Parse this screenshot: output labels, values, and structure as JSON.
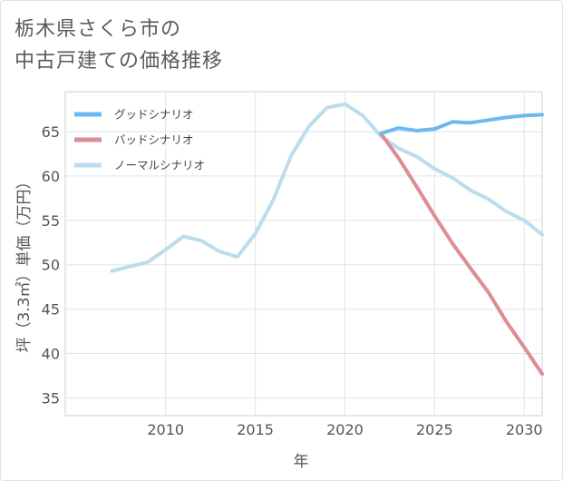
{
  "title_line1": "栃木県さくら市の",
  "title_line2": "中古戸建ての価格推移",
  "chart_data": {
    "type": "line",
    "xlabel": "年",
    "ylabel": "坪（3.3㎡）単価（万円）",
    "xlim": [
      2004.4,
      2031.0
    ],
    "ylim": [
      33.0,
      69.5
    ],
    "xticks": [
      2010,
      2015,
      2020,
      2025,
      2030
    ],
    "yticks": [
      35,
      40,
      45,
      50,
      55,
      60,
      65
    ],
    "grid": true,
    "legend_position": "top-left",
    "series": [
      {
        "name": "グッドシナリオ",
        "color": "#6bb9ee",
        "x": [
          2022,
          2023,
          2024,
          2025,
          2026,
          2027,
          2028,
          2029,
          2030,
          2031
        ],
        "values": [
          64.8,
          65.4,
          65.1,
          65.3,
          66.1,
          66.0,
          66.3,
          66.6,
          66.8,
          66.9
        ]
      },
      {
        "name": "バッドシナリオ",
        "color": "#dd8d93",
        "x": [
          2022,
          2023,
          2024,
          2025,
          2026,
          2027,
          2028,
          2029,
          2030,
          2031
        ],
        "values": [
          64.8,
          62.0,
          58.8,
          55.5,
          52.4,
          49.6,
          46.9,
          43.6,
          40.7,
          37.7
        ]
      },
      {
        "name": "ノーマルシナリオ",
        "color": "#bddcec",
        "x": [
          2007,
          2008,
          2009,
          2010,
          2011,
          2012,
          2013,
          2014,
          2015,
          2016,
          2017,
          2018,
          2019,
          2020,
          2021,
          2022,
          2023,
          2024,
          2025,
          2026,
          2027,
          2028,
          2029,
          2030,
          2031
        ],
        "values": [
          49.3,
          49.8,
          50.3,
          51.7,
          53.2,
          52.7,
          51.5,
          50.9,
          53.5,
          57.3,
          62.3,
          65.6,
          67.7,
          68.1,
          66.8,
          64.5,
          63.1,
          62.2,
          60.8,
          59.8,
          58.4,
          57.4,
          56.0,
          55.0,
          53.4
        ]
      }
    ]
  }
}
